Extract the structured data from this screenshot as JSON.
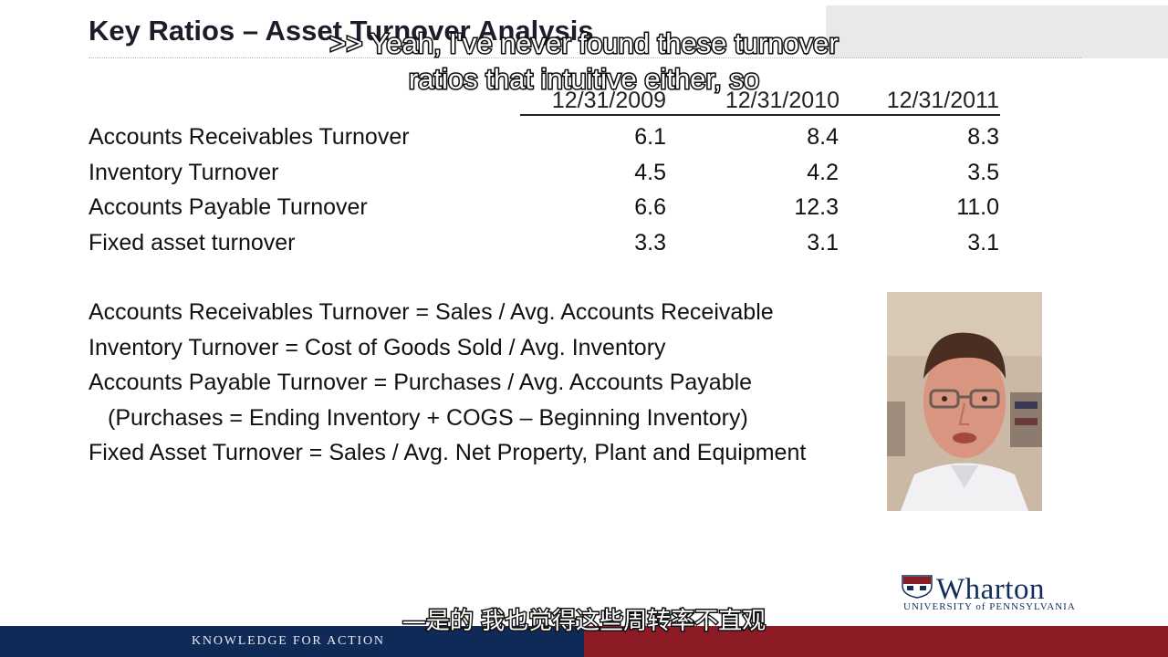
{
  "slide": {
    "title": "Key Ratios – Asset Turnover Analysis",
    "years": [
      "12/31/2009",
      "12/31/2010",
      "12/31/2011"
    ],
    "rows": [
      {
        "label": "Accounts Receivables Turnover",
        "values": [
          "6.1",
          "8.4",
          "8.3"
        ]
      },
      {
        "label": "Inventory Turnover",
        "values": [
          "4.5",
          "4.2",
          "3.5"
        ]
      },
      {
        "label": "Accounts Payable Turnover",
        "values": [
          "6.6",
          "12.3",
          "11.0"
        ]
      },
      {
        "label": "Fixed asset turnover",
        "values": [
          "3.3",
          "3.1",
          "3.1"
        ]
      }
    ],
    "formulas": [
      "Accounts Receivables Turnover = Sales / Avg. Accounts Receivable",
      "Inventory Turnover = Cost of Goods Sold / Avg. Inventory",
      "Accounts Payable Turnover = Purchases / Avg. Accounts Payable",
      "(Purchases = Ending Inventory + COGS – Beginning Inventory)",
      "Fixed Asset Turnover = Sales / Avg. Net Property, Plant and Equipment"
    ]
  },
  "branding": {
    "wharton_name": "Wharton",
    "wharton_sub": "UNIVERSITY of PENNSYLVANIA",
    "footer": "KNOWLEDGE FOR ACTION",
    "navy": "#102a57",
    "crimson": "#8d1b26"
  },
  "captions": {
    "en_line1": ">> Yeah, I've never found these turnover",
    "en_line2": "ratios that intuitive either, so",
    "zh": "—是的 我也觉得这些周转率不直观"
  },
  "video": {
    "icon": "presenter-video"
  }
}
